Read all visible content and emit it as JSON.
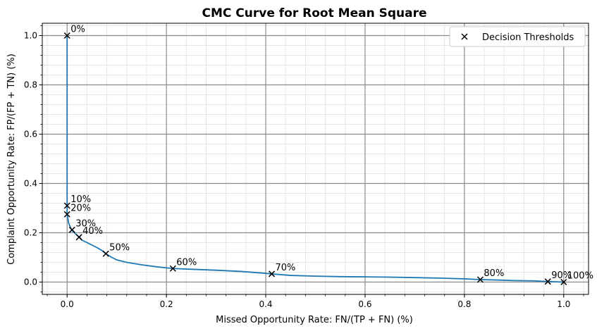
{
  "chart_data": {
    "type": "line",
    "title": "CMC Curve for Root Mean Square",
    "xlabel": "Missed Opportunity Rate: FN/(TP + FN) (%)",
    "ylabel": "Complaint Opportunity Rate: FP/(FP + TN) (%)",
    "xlim": [
      -0.05,
      1.05
    ],
    "ylim": [
      -0.05,
      1.05
    ],
    "xticks": [
      "0.0",
      "0.2",
      "0.4",
      "0.6",
      "0.8",
      "1.0"
    ],
    "yticks": [
      "0.0",
      "0.2",
      "0.4",
      "0.6",
      "0.8",
      "1.0"
    ],
    "grid": true,
    "legend": {
      "placement": "top-right",
      "entries": [
        "Decision Thresholds"
      ]
    },
    "curve": {
      "color": "#1f77b4",
      "x": [
        0.0,
        0.0,
        0.0,
        0.0,
        0.0,
        0.003,
        0.008,
        0.012,
        0.02,
        0.025,
        0.03,
        0.04,
        0.05,
        0.06,
        0.07,
        0.078,
        0.09,
        0.1,
        0.12,
        0.15,
        0.18,
        0.213,
        0.25,
        0.3,
        0.35,
        0.39,
        0.412,
        0.45,
        0.5,
        0.55,
        0.6,
        0.65,
        0.7,
        0.75,
        0.8,
        0.832,
        0.87,
        0.9,
        0.94,
        0.968,
        0.985,
        1.0
      ],
      "y": [
        1.0,
        0.6,
        0.4,
        0.31,
        0.275,
        0.24,
        0.215,
        0.205,
        0.19,
        0.182,
        0.17,
        0.16,
        0.15,
        0.14,
        0.128,
        0.115,
        0.1,
        0.09,
        0.08,
        0.07,
        0.062,
        0.055,
        0.052,
        0.048,
        0.043,
        0.037,
        0.033,
        0.027,
        0.024,
        0.022,
        0.021,
        0.02,
        0.018,
        0.016,
        0.013,
        0.01,
        0.008,
        0.006,
        0.005,
        0.002,
        0.001,
        0.0
      ]
    },
    "thresholds": [
      {
        "label": "0%",
        "x": 0.0,
        "y": 1.0
      },
      {
        "label": "10%",
        "x": 0.0,
        "y": 0.31
      },
      {
        "label": "20%",
        "x": 0.0,
        "y": 0.275
      },
      {
        "label": "30%",
        "x": 0.01,
        "y": 0.212
      },
      {
        "label": "40%",
        "x": 0.024,
        "y": 0.182
      },
      {
        "label": "50%",
        "x": 0.078,
        "y": 0.115
      },
      {
        "label": "60%",
        "x": 0.213,
        "y": 0.055
      },
      {
        "label": "70%",
        "x": 0.412,
        "y": 0.033
      },
      {
        "label": "80%",
        "x": 0.832,
        "y": 0.01
      },
      {
        "label": "90%",
        "x": 0.968,
        "y": 0.002
      },
      {
        "label": "100%",
        "x": 1.0,
        "y": 0.0
      }
    ]
  }
}
